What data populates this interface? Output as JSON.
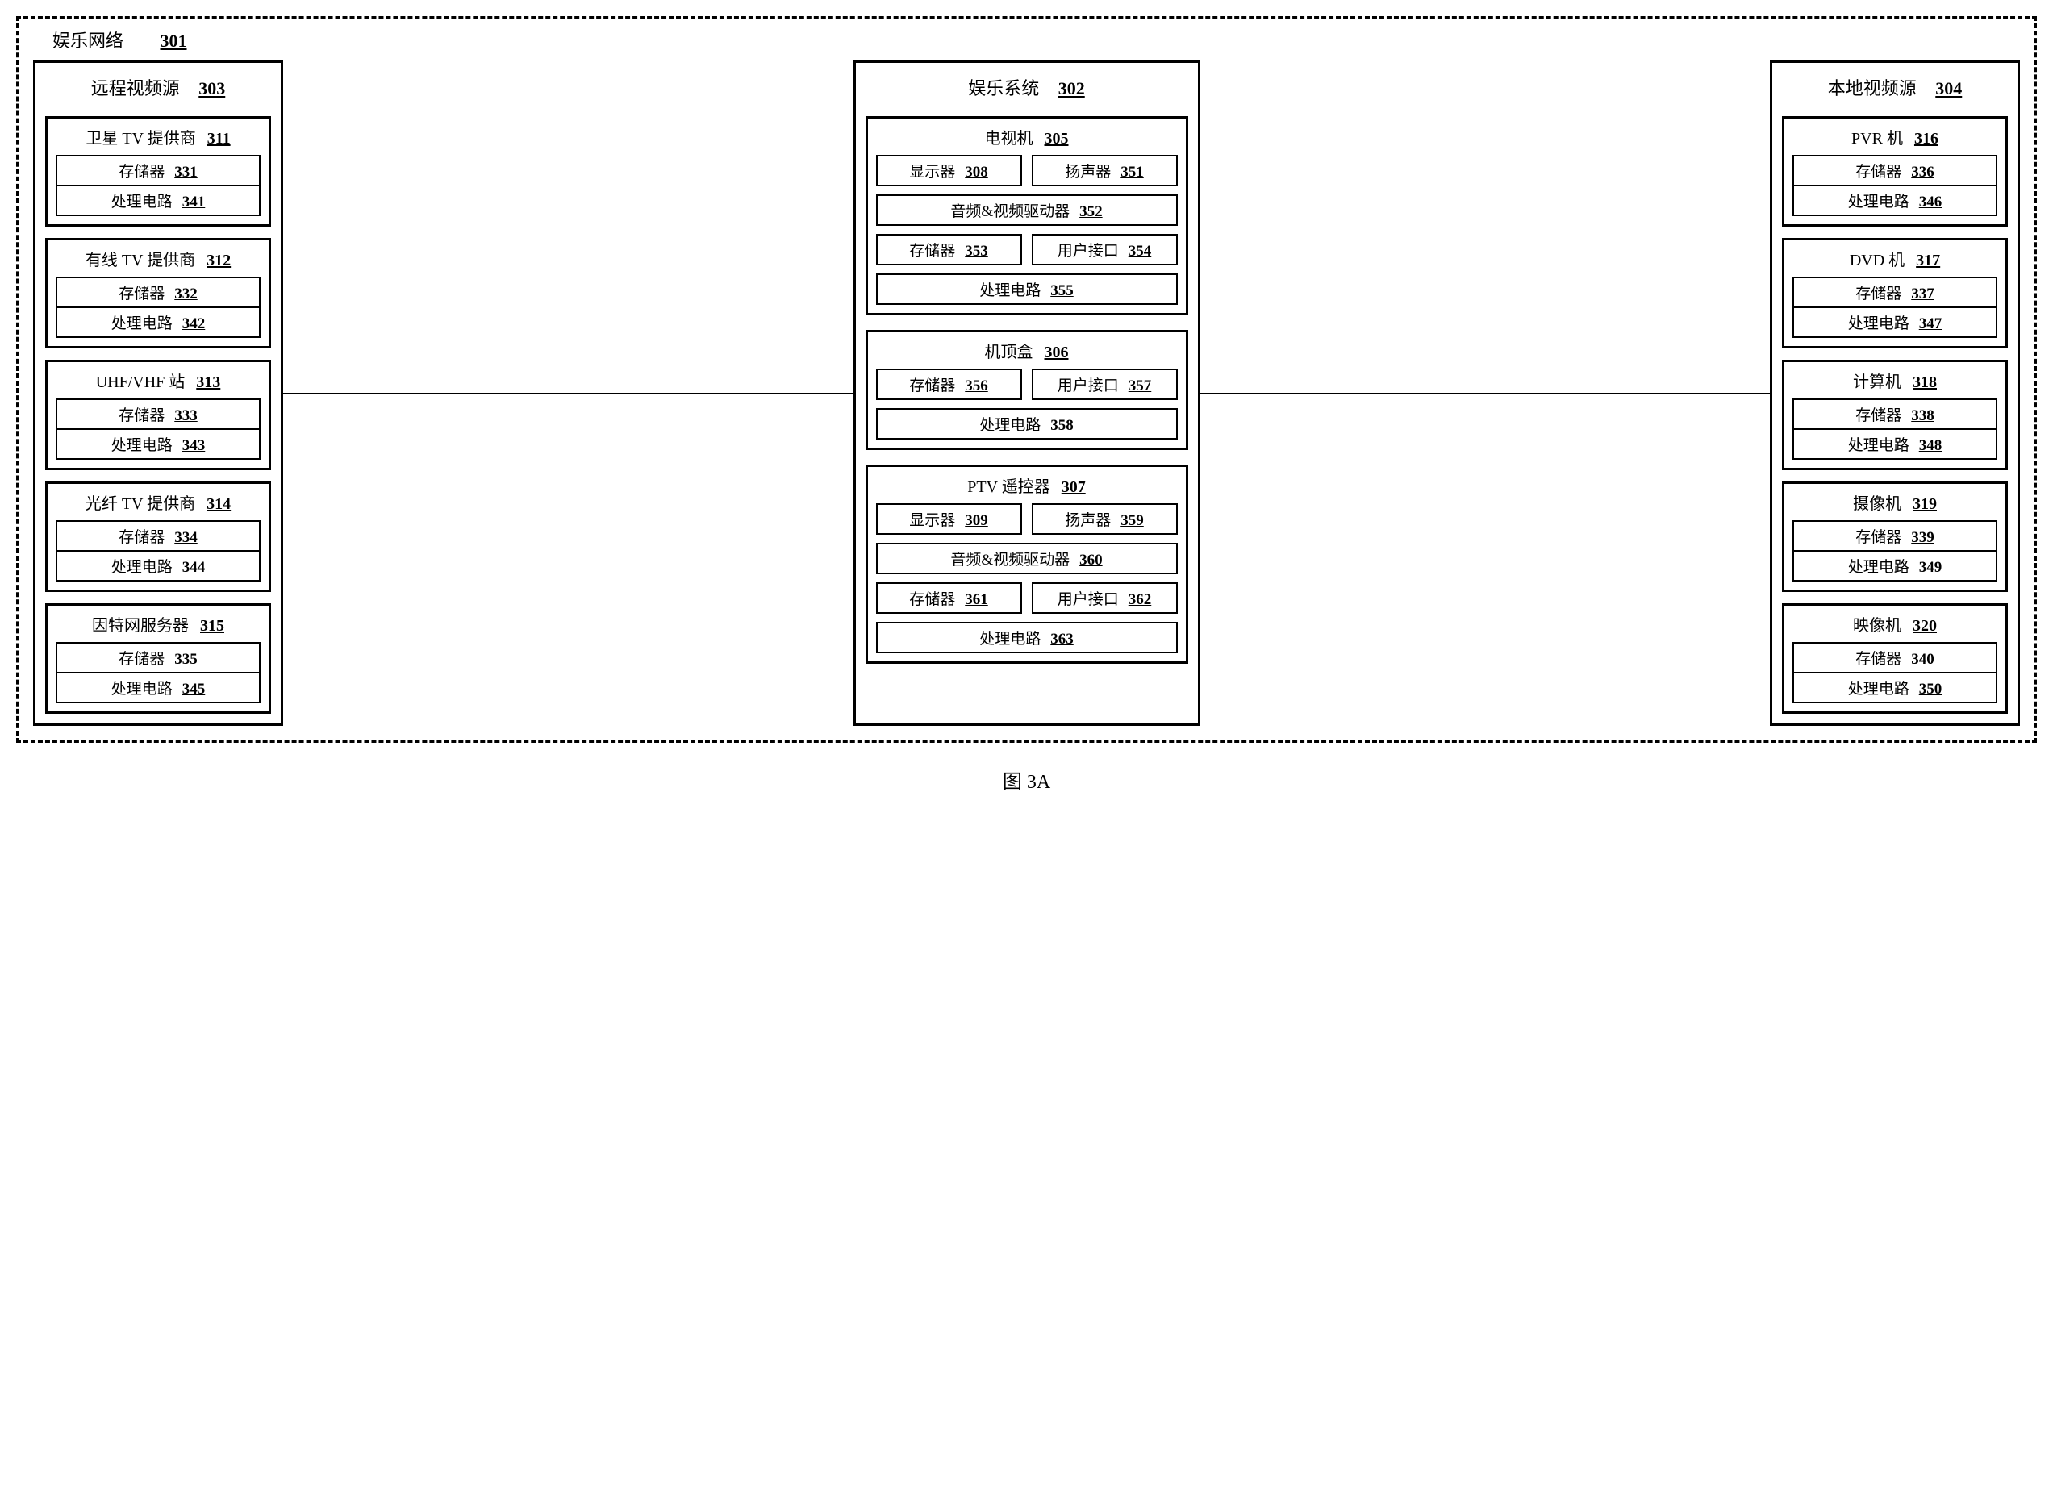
{
  "figureLabel": "图 3A",
  "outer": {
    "title": "娱乐网络",
    "ref": "301"
  },
  "colLeft": {
    "title": "远程视频源",
    "ref": "303",
    "modules": [
      {
        "title": "卫星 TV 提供商",
        "ref": "311",
        "subs": [
          {
            "label": "存储器",
            "ref": "331"
          },
          {
            "label": "处理电路",
            "ref": "341"
          }
        ]
      },
      {
        "title": "有线 TV 提供商",
        "ref": "312",
        "subs": [
          {
            "label": "存储器",
            "ref": "332"
          },
          {
            "label": "处理电路",
            "ref": "342"
          }
        ]
      },
      {
        "title": "UHF/VHF 站",
        "ref": "313",
        "subs": [
          {
            "label": "存储器",
            "ref": "333"
          },
          {
            "label": "处理电路",
            "ref": "343"
          }
        ]
      },
      {
        "title": "光纤 TV 提供商",
        "ref": "314",
        "subs": [
          {
            "label": "存储器",
            "ref": "334"
          },
          {
            "label": "处理电路",
            "ref": "344"
          }
        ]
      },
      {
        "title": "因特网服务器",
        "ref": "315",
        "subs": [
          {
            "label": "存储器",
            "ref": "335"
          },
          {
            "label": "处理电路",
            "ref": "345"
          }
        ]
      }
    ]
  },
  "colMid": {
    "title": "娱乐系统",
    "ref": "302",
    "modules": [
      {
        "title": "电视机",
        "ref": "305",
        "rows": [
          {
            "type": "pair",
            "a": {
              "label": "显示器",
              "ref": "308"
            },
            "b": {
              "label": "扬声器",
              "ref": "351"
            }
          },
          {
            "type": "single",
            "label": "音频&视频驱动器",
            "ref": "352"
          },
          {
            "type": "pair",
            "a": {
              "label": "存储器",
              "ref": "353"
            },
            "b": {
              "label": "用户接口",
              "ref": "354"
            }
          },
          {
            "type": "single",
            "label": "处理电路",
            "ref": "355"
          }
        ]
      },
      {
        "title": "机顶盒",
        "ref": "306",
        "rows": [
          {
            "type": "pair",
            "a": {
              "label": "存储器",
              "ref": "356"
            },
            "b": {
              "label": "用户接口",
              "ref": "357"
            }
          },
          {
            "type": "single",
            "label": "处理电路",
            "ref": "358"
          }
        ]
      },
      {
        "title": "PTV 遥控器",
        "ref": "307",
        "rows": [
          {
            "type": "pair",
            "a": {
              "label": "显示器",
              "ref": "309"
            },
            "b": {
              "label": "扬声器",
              "ref": "359"
            }
          },
          {
            "type": "single",
            "label": "音频&视频驱动器",
            "ref": "360"
          },
          {
            "type": "pair",
            "a": {
              "label": "存储器",
              "ref": "361"
            },
            "b": {
              "label": "用户接口",
              "ref": "362"
            }
          },
          {
            "type": "single",
            "label": "处理电路",
            "ref": "363"
          }
        ]
      }
    ]
  },
  "colRight": {
    "title": "本地视频源",
    "ref": "304",
    "modules": [
      {
        "title": "PVR 机",
        "ref": "316",
        "subs": [
          {
            "label": "存储器",
            "ref": "336"
          },
          {
            "label": "处理电路",
            "ref": "346"
          }
        ]
      },
      {
        "title": "DVD 机",
        "ref": "317",
        "subs": [
          {
            "label": "存储器",
            "ref": "337"
          },
          {
            "label": "处理电路",
            "ref": "347"
          }
        ]
      },
      {
        "title": "计算机",
        "ref": "318",
        "subs": [
          {
            "label": "存储器",
            "ref": "338"
          },
          {
            "label": "处理电路",
            "ref": "348"
          }
        ]
      },
      {
        "title": "摄像机",
        "ref": "319",
        "subs": [
          {
            "label": "存储器",
            "ref": "339"
          },
          {
            "label": "处理电路",
            "ref": "349"
          }
        ]
      },
      {
        "title": "映像机",
        "ref": "320",
        "subs": [
          {
            "label": "存储器",
            "ref": "340"
          },
          {
            "label": "处理电路",
            "ref": "350"
          }
        ]
      }
    ]
  }
}
